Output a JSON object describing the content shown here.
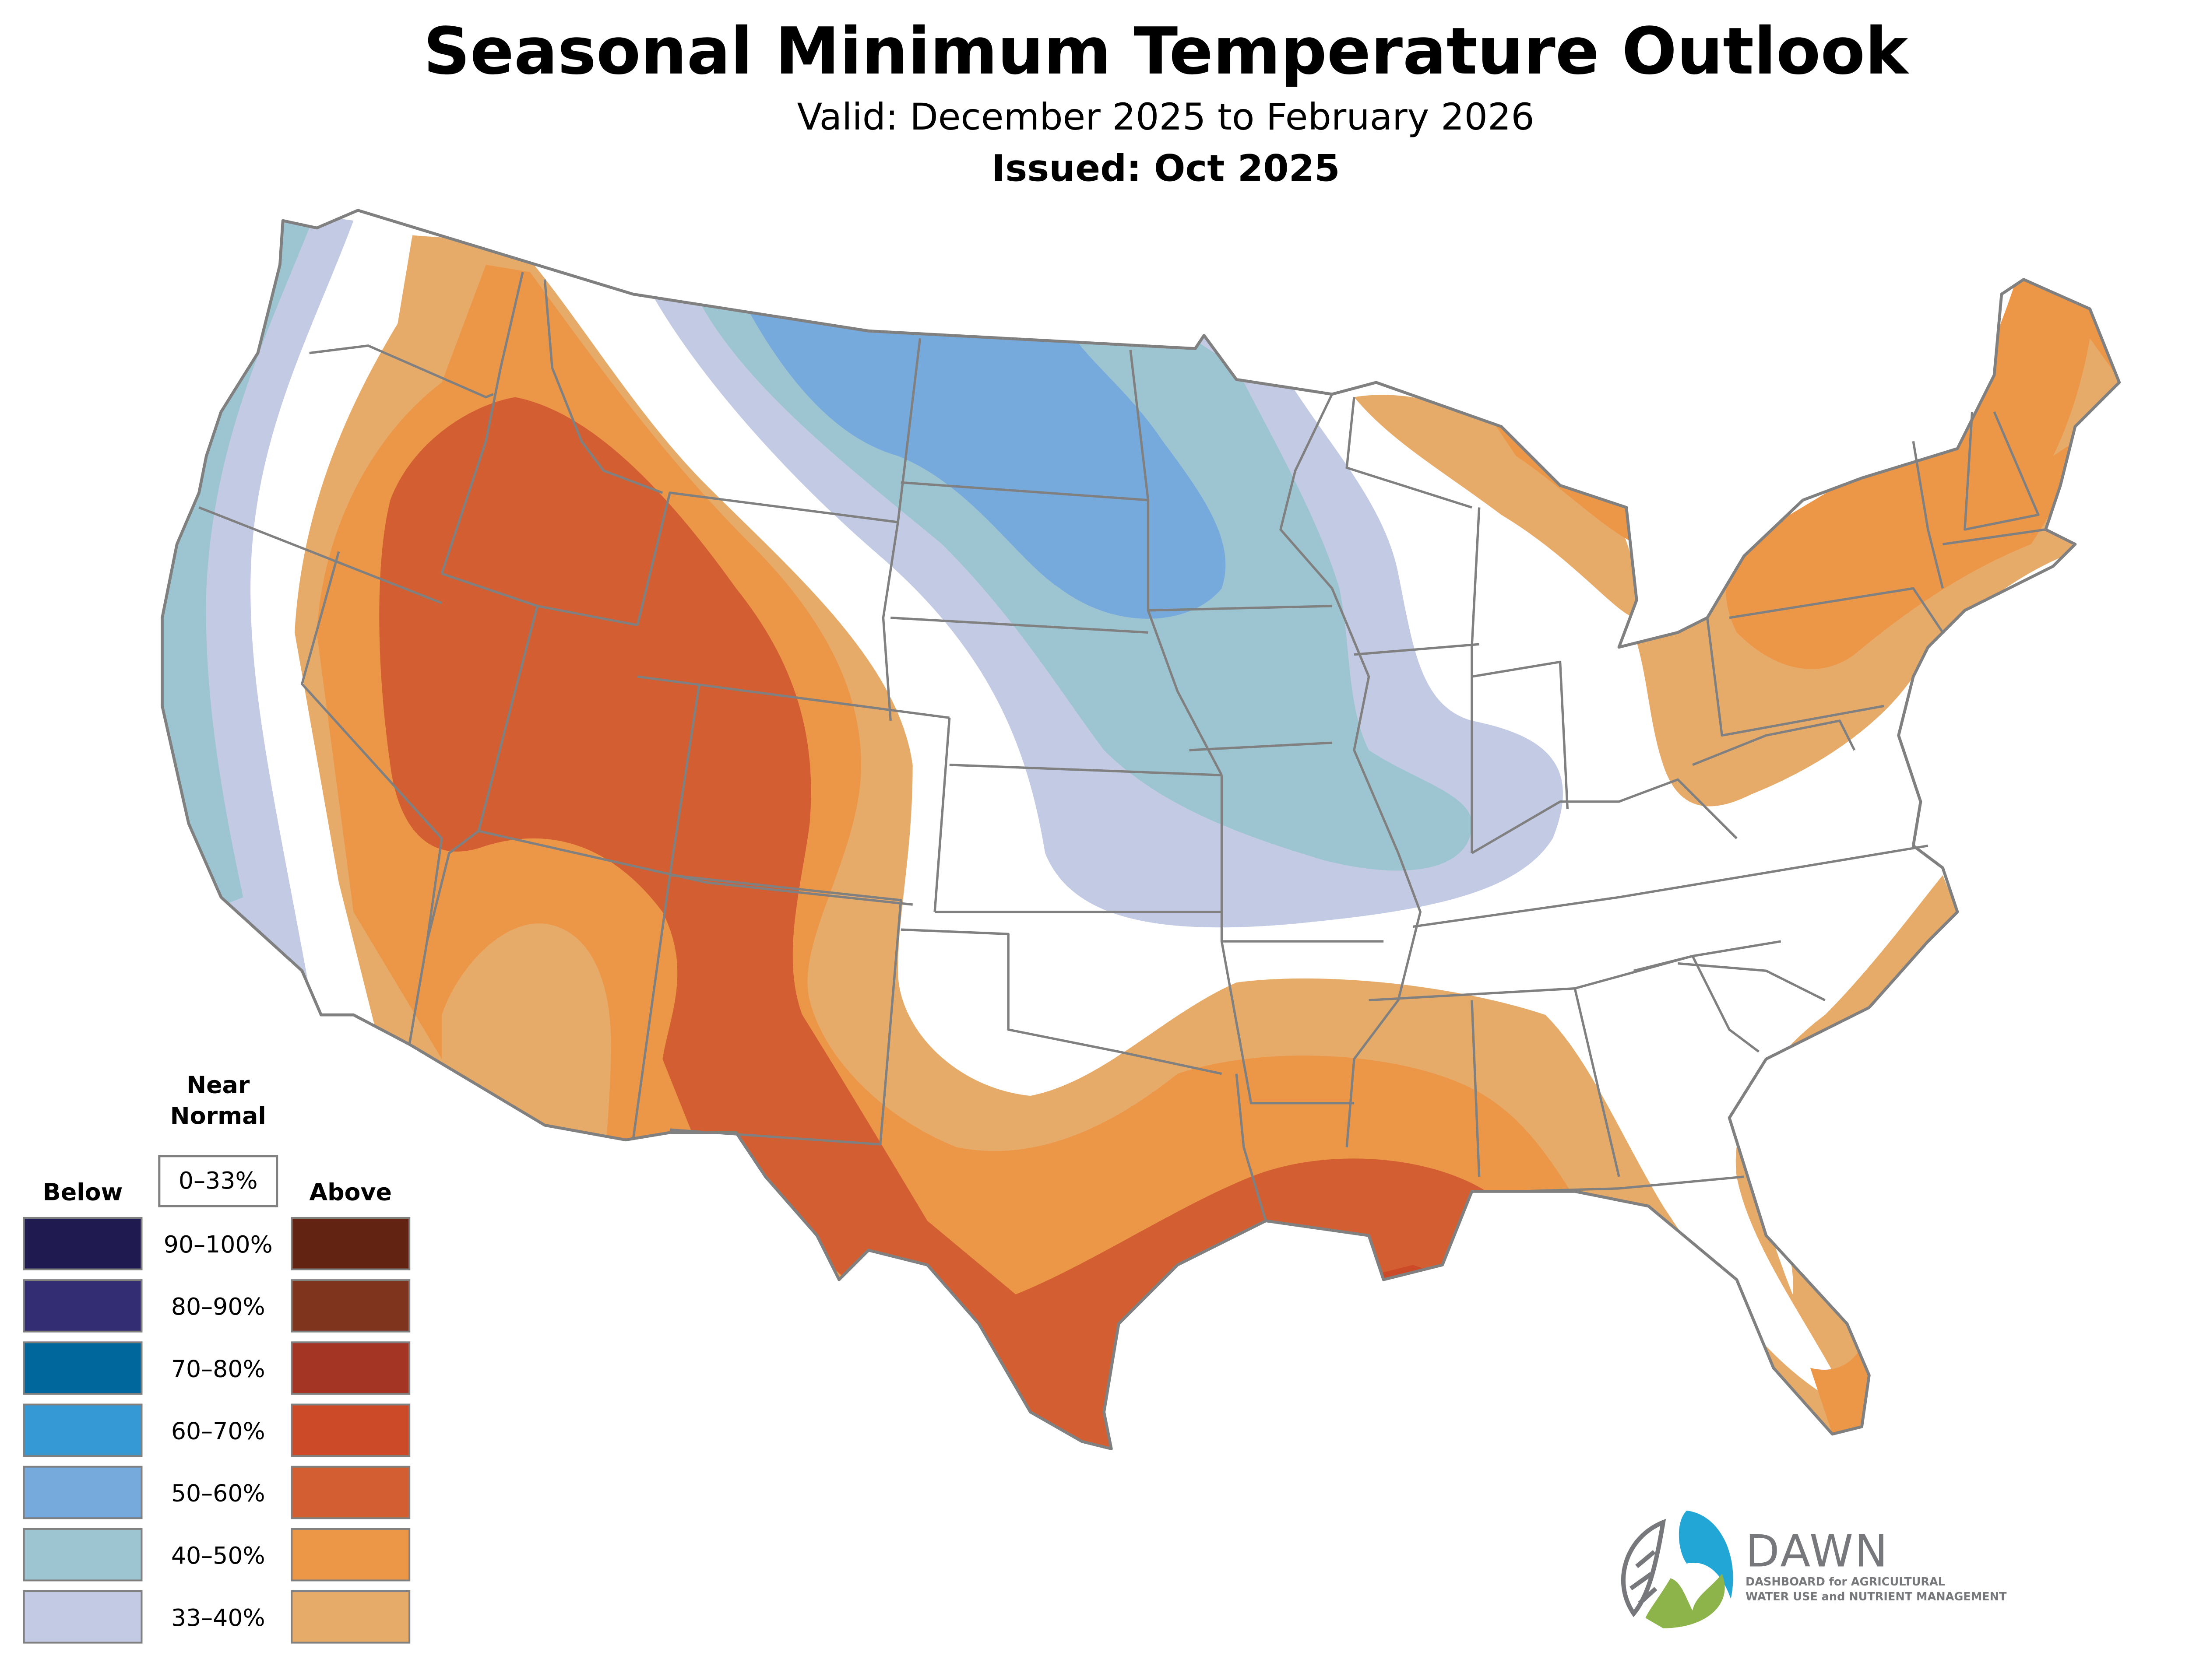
{
  "header": {
    "title": "Seasonal Minimum Temperature Outlook",
    "valid": "Valid: December 2025 to February 2026",
    "issued": "Issued: Oct 2025"
  },
  "legend": {
    "near_normal_title_line1": "Near",
    "near_normal_title_line2": "Normal",
    "near_normal_range": "0–33%",
    "below_title": "Below",
    "above_title": "Above",
    "bins": [
      {
        "label": "90–100%",
        "below_color": "#1f1a4f",
        "above_color": "#632312"
      },
      {
        "label": "80–90%",
        "below_color": "#332d74",
        "above_color": "#7e341d"
      },
      {
        "label": "70–80%",
        "below_color": "#00679c",
        "above_color": "#a43525"
      },
      {
        "label": "60–70%",
        "below_color": "#3499d5",
        "above_color": "#cd4a28"
      },
      {
        "label": "50–60%",
        "below_color": "#76a9dc",
        "above_color": "#d35e32"
      },
      {
        "label": "40–50%",
        "below_color": "#9dc4d1",
        "above_color": "#ec9748"
      },
      {
        "label": "33–40%",
        "below_color": "#c3cae3",
        "above_color": "#e7ab69"
      }
    ]
  },
  "map": {
    "region": "Contiguous United States",
    "categories": {
      "below_33_40": "#c3cae3",
      "below_40_50": "#9dc4d1",
      "below_50_60": "#76a9dc",
      "above_33_40": "#e7ab69",
      "above_40_50": "#ec9748",
      "above_50_60": "#d35e32",
      "above_60_70": "#cd4a28",
      "near_normal": "#ffffff",
      "border": "#808080"
    },
    "regions_described": [
      {
        "area": "Pacific Coast (WA, OR, CA coast)",
        "category": "Below",
        "range": "33–50%"
      },
      {
        "area": "Northern Plains / Upper Midwest (MT, ND, SD, MN, IA, MO, IL)",
        "category": "Below",
        "range": "33–60%"
      },
      {
        "area": "Intermountain West / Rockies / Southwest (ID, NV, UT, CO, AZ, NM)",
        "category": "Above",
        "range": "33–60%"
      },
      {
        "area": "Gulf Coast & Texas",
        "category": "Above",
        "range": "33–70%"
      },
      {
        "area": "Southeast Atlantic coast & Florida",
        "category": "Above",
        "range": "33–50%"
      },
      {
        "area": "Northeast & Great Lakes (NY, New England, PA, MI)",
        "category": "Above",
        "range": "33–50%"
      }
    ]
  },
  "logo": {
    "name": "DAWN",
    "tagline_line1": "DASHBOARD for AGRICULTURAL",
    "tagline_line2": "WATER USE and NUTRIENT MANAGEMENT",
    "colors": {
      "blue": "#22a6d5",
      "green": "#8db44b",
      "gray": "#77787b"
    }
  }
}
